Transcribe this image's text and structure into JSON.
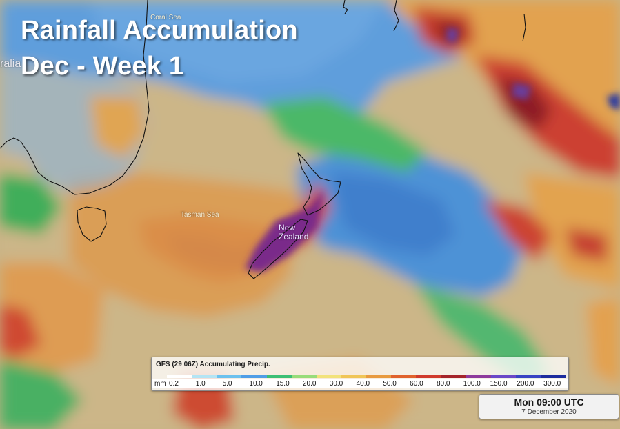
{
  "title": {
    "line1": "Rainfall Accumulation",
    "line2": "Dec - Week 1"
  },
  "places": {
    "coral_sea": "Coral Sea",
    "tasman_sea": "Tasman Sea",
    "new_zealand": "New Zealand",
    "australia_partial": "ralia"
  },
  "legend": {
    "title": "GFS (29 06Z) Accumulating Precip.",
    "unit": "mm",
    "labels": [
      "0.2",
      "1.0",
      "5.0",
      "10.0",
      "15.0",
      "20.0",
      "30.0",
      "40.0",
      "50.0",
      "60.0",
      "80.0",
      "100.0",
      "150.0",
      "200.0",
      "300.0"
    ],
    "colors": [
      "#ffffff",
      "#b4e4f4",
      "#6cc1ee",
      "#4f9ee6",
      "#3dbf74",
      "#98dc7a",
      "#f2e27a",
      "#f0c557",
      "#e89a3f",
      "#e0622c",
      "#d03a2c",
      "#a4242a",
      "#8e3a9c",
      "#6a48c8",
      "#3844c4",
      "#1c2c9e"
    ]
  },
  "time": {
    "main": "Mon 09:00 UTC",
    "date": "7 December 2020"
  },
  "colors": {
    "ocean_blue": "#5b97d6",
    "tan": "#c9b486",
    "orange": "#dc9a4e",
    "red": "#c8402e",
    "dark_red": "#8c1c24",
    "purple": "#6a3c9a",
    "green": "#3db34e"
  }
}
